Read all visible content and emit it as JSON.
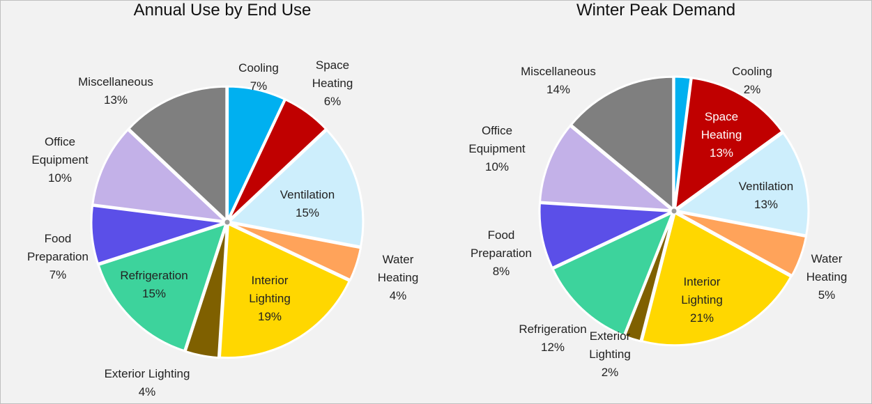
{
  "chart_data": [
    {
      "type": "pie",
      "title": "Annual Use by End Use",
      "categories": [
        "Cooling",
        "Space Heating",
        "Ventilation",
        "Water Heating",
        "Interior Lighting",
        "Exterior Lighting",
        "Refrigeration",
        "Food Preparation",
        "Office Equipment",
        "Miscellaneous"
      ],
      "values": [
        7,
        6,
        15,
        4,
        19,
        4,
        15,
        7,
        10,
        13
      ],
      "value_labels": [
        "7%",
        "6%",
        "15%",
        "4%",
        "19%",
        "4%",
        "15%",
        "7%",
        "10%",
        "13%"
      ],
      "colors": [
        "#00b0f0",
        "#c00000",
        "#cdeefc",
        "#ffa35a",
        "#ffd700",
        "#7f6000",
        "#3dd39c",
        "#5b4fe8",
        "#c3b1e8",
        "#7f7f7f"
      ]
    },
    {
      "type": "pie",
      "title": "Winter Peak Demand",
      "categories": [
        "Cooling",
        "Space Heating",
        "Ventilation",
        "Water Heating",
        "Interior Lighting",
        "Exterior Lighting",
        "Refrigeration",
        "Food Preparation",
        "Office Equipment",
        "Miscellaneous"
      ],
      "values": [
        2,
        13,
        13,
        5,
        21,
        2,
        12,
        8,
        10,
        14
      ],
      "value_labels": [
        "2%",
        "13%",
        "13%",
        "5%",
        "21%",
        "2%",
        "12%",
        "8%",
        "10%",
        "14%"
      ],
      "colors": [
        "#00b0f0",
        "#c00000",
        "#cdeefc",
        "#ffa35a",
        "#ffd700",
        "#7f6000",
        "#3dd39c",
        "#5b4fe8",
        "#c3b1e8",
        "#7f7f7f"
      ]
    }
  ]
}
